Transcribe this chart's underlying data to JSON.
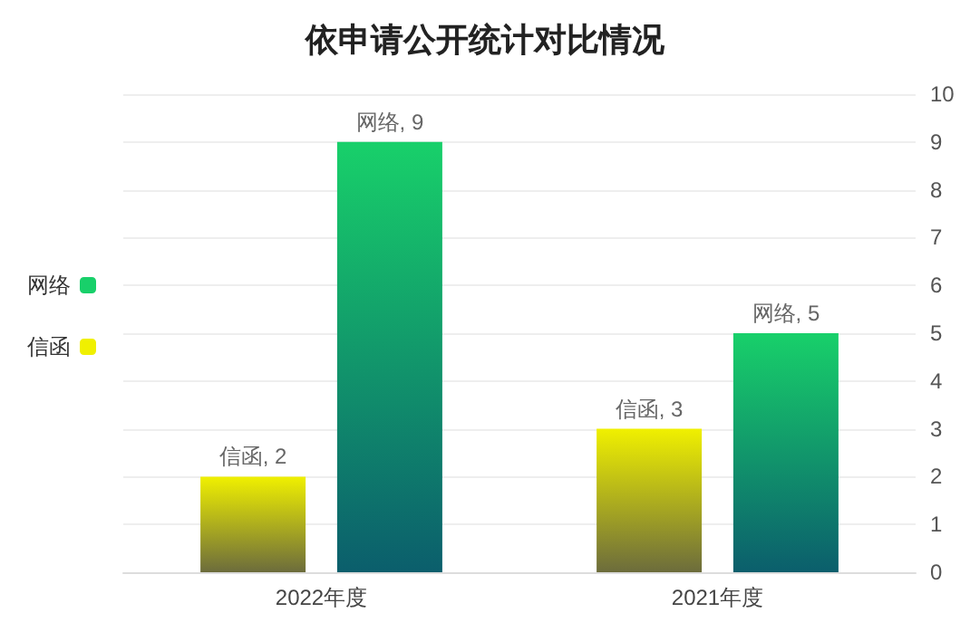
{
  "chart_data": {
    "type": "bar",
    "title": "依申请公开统计对比情况",
    "categories": [
      "2022年度",
      "2021年度"
    ],
    "series": [
      {
        "name": "信函",
        "color": "#f0f000",
        "values": [
          2,
          3
        ],
        "value_labels": [
          "信函, 2",
          "信函, 3"
        ]
      },
      {
        "name": "网络",
        "color": "#18d06a",
        "values": [
          9,
          5
        ],
        "value_labels": [
          "网络, 9",
          "网络, 5"
        ]
      }
    ],
    "ylim": [
      0,
      10
    ],
    "yticks": [
      0,
      1,
      2,
      3,
      4,
      5,
      6,
      7,
      8,
      9,
      10
    ],
    "grid": "y",
    "legend": "left"
  }
}
